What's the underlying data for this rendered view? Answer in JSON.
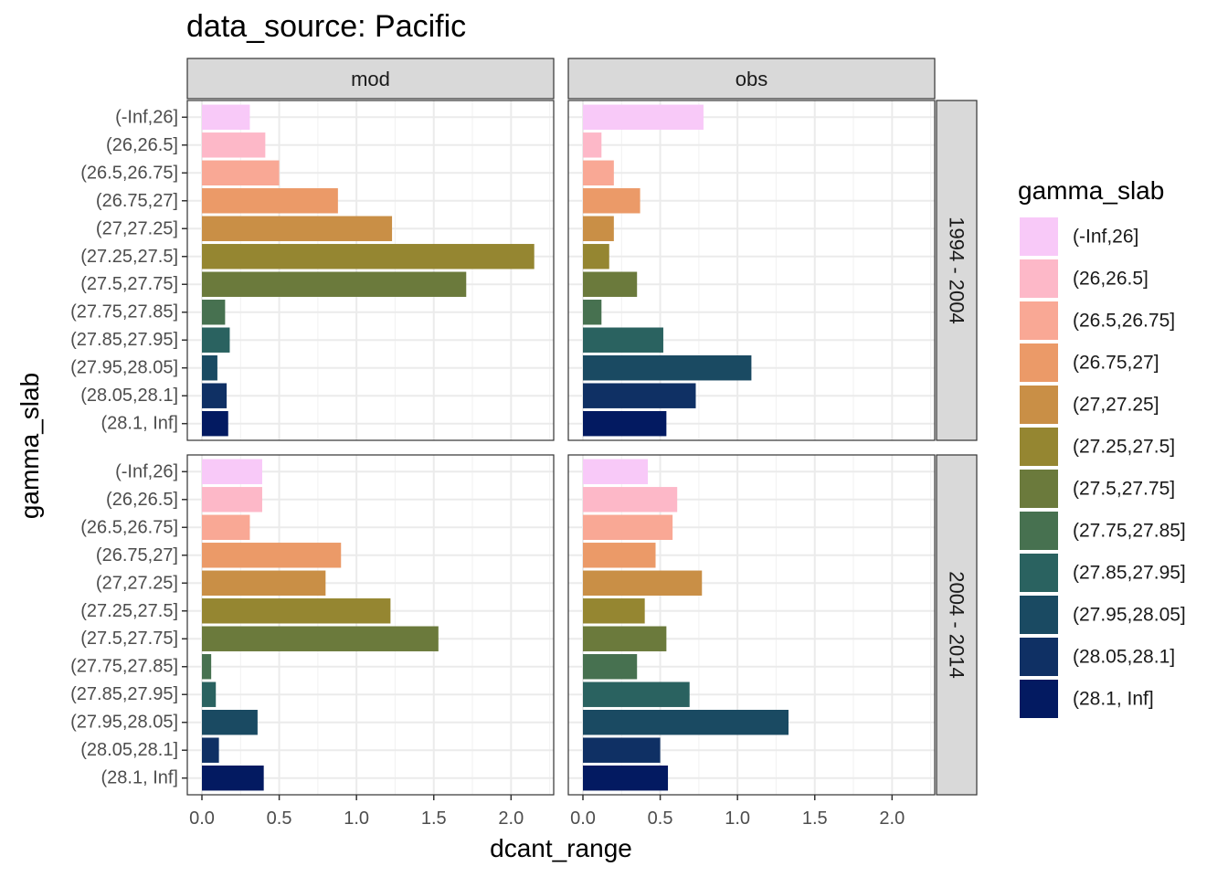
{
  "chart_data": {
    "type": "bar",
    "orientation": "horizontal",
    "title": "data_source: Pacific",
    "xlabel": "dcant_range",
    "ylabel": "gamma_slab",
    "xlim": [
      0,
      2.27
    ],
    "x_ticks": [
      "0.0",
      "0.5",
      "1.0",
      "1.5",
      "2.0"
    ],
    "x_tick_values": [
      0,
      0.5,
      1.0,
      1.5,
      2.0
    ],
    "grid": true,
    "legend_position": "right",
    "legend_title": "gamma_slab",
    "categories": [
      "(-Inf,26]",
      "(26,26.5]",
      "(26.5,26.75]",
      "(26.75,27]",
      "(27,27.25]",
      "(27.25,27.5]",
      "(27.5,27.75]",
      "(27.75,27.85]",
      "(27.85,27.95]",
      "(27.95,28.05]",
      "(28.05,28.1]",
      "(28.1, Inf]"
    ],
    "colors": [
      "#F8C9F8",
      "#FDB8C8",
      "#F9A895",
      "#EB9A68",
      "#C98F46",
      "#958631",
      "#6B7A3C",
      "#477150",
      "#2A6260",
      "#1A4A62",
      "#0F3064",
      "#031A61"
    ],
    "column_facets": [
      "mod",
      "obs"
    ],
    "row_facets": [
      "1994 - 2004",
      "2004 - 2014"
    ],
    "panels": [
      {
        "column": "mod",
        "row": "1994 - 2004",
        "values": [
          0.31,
          0.41,
          0.5,
          0.88,
          1.23,
          2.15,
          1.71,
          0.15,
          0.18,
          0.1,
          0.16,
          0.17
        ]
      },
      {
        "column": "obs",
        "row": "1994 - 2004",
        "values": [
          0.78,
          0.12,
          0.2,
          0.37,
          0.2,
          0.17,
          0.35,
          0.12,
          0.52,
          1.09,
          0.73,
          0.54
        ]
      },
      {
        "column": "mod",
        "row": "2004 - 2014",
        "values": [
          0.39,
          0.39,
          0.31,
          0.9,
          0.8,
          1.22,
          1.53,
          0.06,
          0.09,
          0.36,
          0.11,
          0.4
        ]
      },
      {
        "column": "obs",
        "row": "2004 - 2014",
        "values": [
          0.42,
          0.61,
          0.58,
          0.47,
          0.77,
          0.4,
          0.54,
          0.35,
          0.69,
          1.33,
          0.5,
          0.55
        ]
      }
    ]
  }
}
